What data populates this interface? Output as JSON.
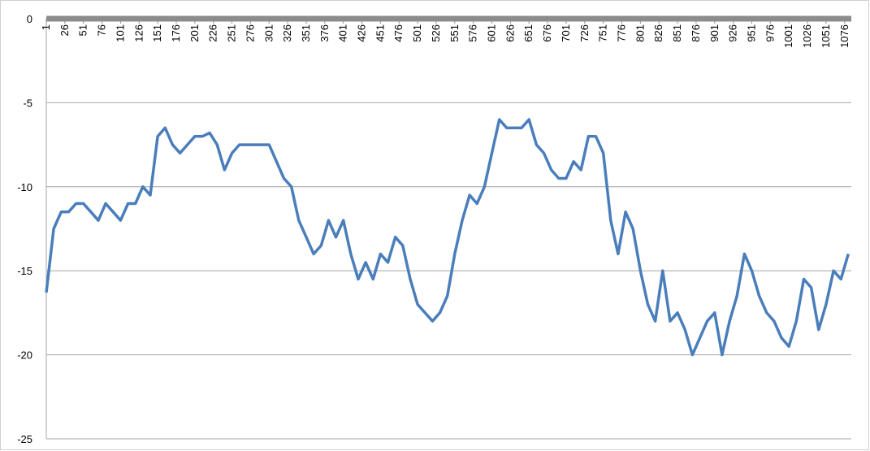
{
  "chart_data": {
    "type": "line",
    "x": [
      1,
      11,
      21,
      31,
      41,
      51,
      61,
      71,
      81,
      91,
      101,
      111,
      121,
      131,
      141,
      151,
      161,
      171,
      181,
      191,
      201,
      211,
      221,
      231,
      241,
      251,
      261,
      271,
      281,
      291,
      301,
      311,
      321,
      331,
      341,
      351,
      361,
      371,
      381,
      391,
      401,
      411,
      421,
      431,
      441,
      451,
      461,
      471,
      481,
      491,
      501,
      511,
      521,
      531,
      541,
      551,
      561,
      571,
      581,
      591,
      601,
      611,
      621,
      631,
      641,
      651,
      661,
      671,
      681,
      691,
      701,
      711,
      721,
      731,
      741,
      751,
      761,
      771,
      781,
      791,
      801,
      811,
      821,
      831,
      841,
      851,
      861,
      871,
      881,
      891,
      901,
      911,
      921,
      931,
      941,
      951,
      961,
      971,
      981,
      991,
      1001,
      1011,
      1021,
      1031,
      1041,
      1051,
      1061,
      1071,
      1081
    ],
    "series": [
      {
        "color": "#4a7ebb",
        "values": [
          -16.3,
          -12.5,
          -11.5,
          -11.5,
          -11,
          -11,
          -11.5,
          -12,
          -11,
          -11.5,
          -12,
          -11,
          -11,
          -10,
          -10.5,
          -7,
          -6.5,
          -7.5,
          -8,
          -7.5,
          -7,
          -7,
          -6.8,
          -7.5,
          -9,
          -8,
          -7.5,
          -7.5,
          -7.5,
          -7.5,
          -7.5,
          -8.5,
          -9.5,
          -10,
          -12,
          -13,
          -14,
          -13.5,
          -12,
          -13,
          -12,
          -14,
          -15.5,
          -14.5,
          -15.5,
          -14,
          -14.5,
          -13,
          -13.5,
          -15.5,
          -17,
          -17.5,
          -18,
          -17.5,
          -16.5,
          -14,
          -12,
          -10.5,
          -11,
          -10,
          -8,
          -6,
          -6.5,
          -6.5,
          -6.5,
          -6,
          -7.5,
          -8,
          -9,
          -9.5,
          -9.5,
          -8.5,
          -9,
          -7,
          -7,
          -8,
          -12,
          -14,
          -11.5,
          -12.5,
          -15,
          -17,
          -18,
          -15,
          -18,
          -17.5,
          -18.5,
          -20,
          -19,
          -18,
          -17.5,
          -20,
          -18,
          -16.5,
          -14,
          -15,
          -16.5,
          -17.5,
          -18,
          -19,
          -19.5,
          -18,
          -15.5,
          -16,
          -18.5,
          -17,
          -15,
          -15.5,
          -14
        ]
      }
    ],
    "xlim": [
      1,
      1085
    ],
    "xticks": [
      1,
      26,
      51,
      76,
      101,
      126,
      151,
      176,
      201,
      226,
      251,
      276,
      301,
      326,
      351,
      376,
      401,
      426,
      451,
      476,
      501,
      526,
      551,
      576,
      601,
      626,
      651,
      676,
      701,
      726,
      751,
      776,
      801,
      826,
      851,
      876,
      901,
      926,
      951,
      976,
      1001,
      1026,
      1051,
      1076
    ],
    "ylim": [
      -25,
      0
    ],
    "yticks": [
      0,
      -5,
      -10,
      -15,
      -20,
      -25
    ],
    "grid": true
  }
}
